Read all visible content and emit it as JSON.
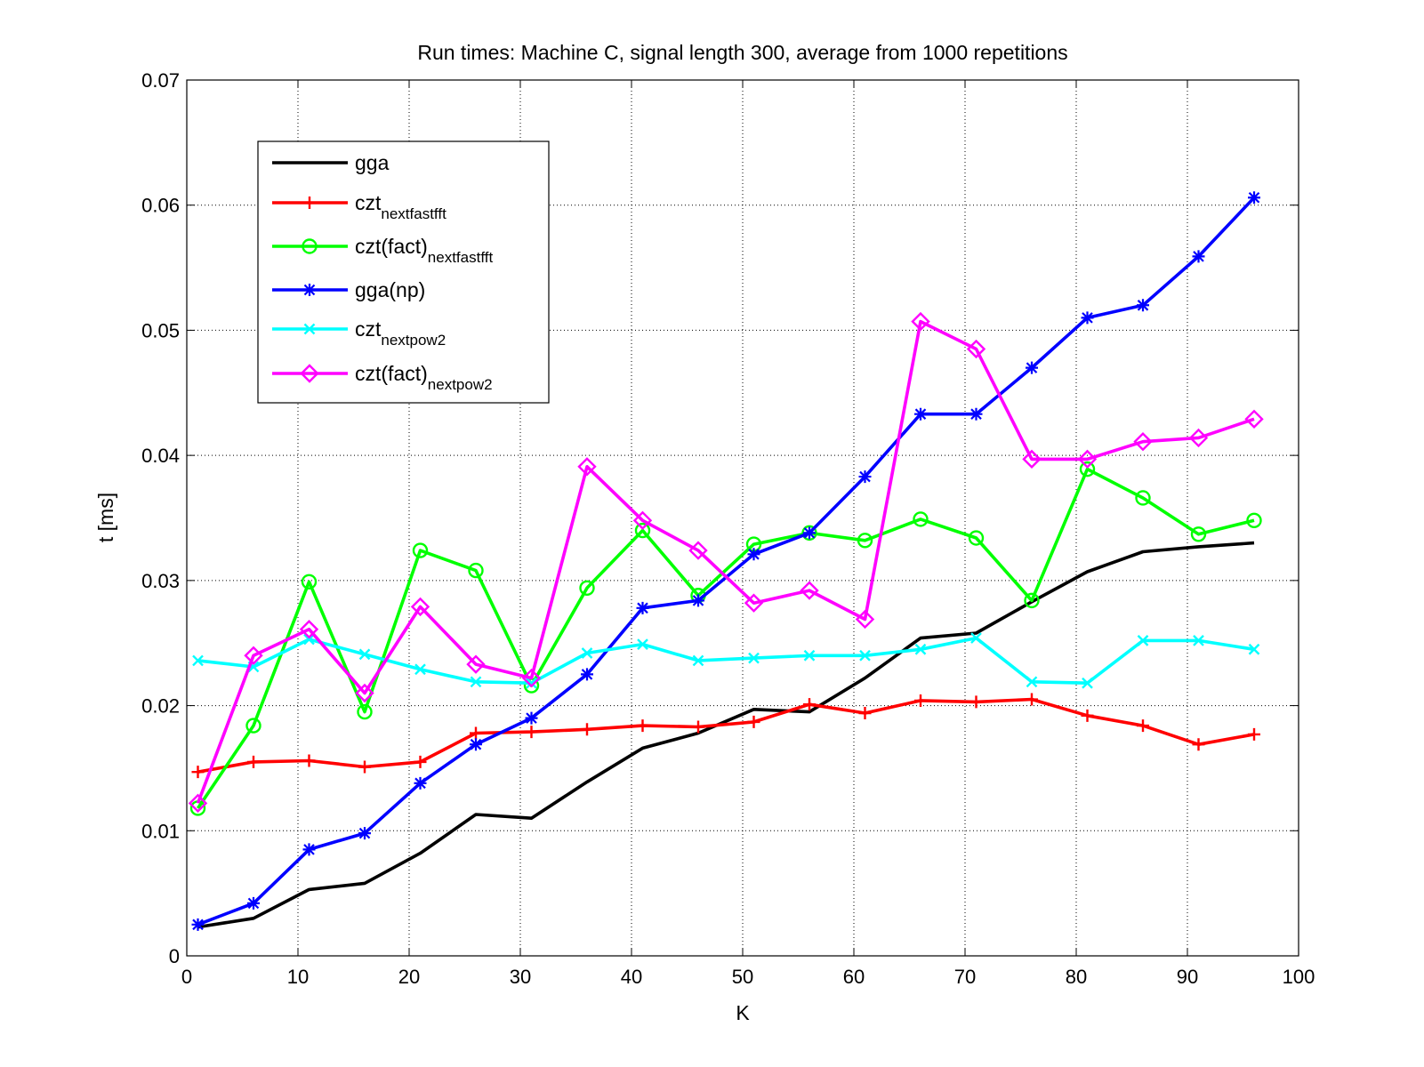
{
  "chart_data": {
    "type": "line",
    "title": "Run times: Machine C, signal length 300, average from 1000 repetitions",
    "xlabel": "K",
    "ylabel": "t [ms]",
    "xlim": [
      0,
      100
    ],
    "ylim": [
      0,
      0.07
    ],
    "xticks": [
      "0",
      "10",
      "20",
      "30",
      "40",
      "50",
      "60",
      "70",
      "80",
      "90",
      "100"
    ],
    "yticks": [
      "0",
      "0.01",
      "0.02",
      "0.03",
      "0.04",
      "0.05",
      "0.06",
      "0.07"
    ],
    "grid": true,
    "legend_position": "top-left",
    "x": [
      1,
      6,
      11,
      16,
      21,
      26,
      31,
      36,
      41,
      46,
      51,
      56,
      61,
      66,
      71,
      76,
      81,
      86,
      91,
      96
    ],
    "series": [
      {
        "name": "gga",
        "name_main": "gga",
        "name_sub": "",
        "color": "#000000",
        "marker": "none",
        "values": [
          0.0023,
          0.003,
          0.0053,
          0.0058,
          0.0082,
          0.0113,
          0.011,
          0.0139,
          0.0166,
          0.0178,
          0.0197,
          0.0195,
          0.0222,
          0.0254,
          0.0258,
          0.0283,
          0.0307,
          0.0323,
          0.0327,
          0.033
        ]
      },
      {
        "name": "czt_nextfastfft",
        "name_main": "czt",
        "name_sub": "nextfastfft",
        "color": "#ff0000",
        "marker": "plus",
        "values": [
          0.0147,
          0.0155,
          0.0156,
          0.0151,
          0.0155,
          0.0178,
          0.0179,
          0.0181,
          0.0184,
          0.0183,
          0.0187,
          0.0201,
          0.0194,
          0.0204,
          0.0203,
          0.0205,
          0.0192,
          0.0184,
          0.0169,
          0.0177
        ]
      },
      {
        "name": "czt(fact)_nextfastfft",
        "name_main": "czt(fact)",
        "name_sub": "nextfastfft",
        "color": "#00ff00",
        "marker": "circle",
        "values": [
          0.0118,
          0.0184,
          0.0299,
          0.0195,
          0.0324,
          0.0308,
          0.0216,
          0.0294,
          0.034,
          0.0288,
          0.0329,
          0.0338,
          0.0332,
          0.0349,
          0.0334,
          0.0284,
          0.0389,
          0.0366,
          0.0337,
          0.0348
        ]
      },
      {
        "name": "gga(np)",
        "name_main": "gga(np)",
        "name_sub": "",
        "color": "#0000ff",
        "marker": "star",
        "values": [
          0.0025,
          0.0042,
          0.0085,
          0.0098,
          0.0138,
          0.0169,
          0.019,
          0.0225,
          0.0278,
          0.0284,
          0.0321,
          0.0338,
          0.0383,
          0.0433,
          0.0433,
          0.047,
          0.051,
          0.052,
          0.0559,
          0.0606
        ]
      },
      {
        "name": "czt_nextpow2",
        "name_main": "czt",
        "name_sub": "nextpow2",
        "color": "#00ffff",
        "marker": "x",
        "values": [
          0.0236,
          0.0231,
          0.0253,
          0.0241,
          0.0229,
          0.0219,
          0.0218,
          0.0242,
          0.0249,
          0.0236,
          0.0238,
          0.024,
          0.024,
          0.0245,
          0.0254,
          0.0219,
          0.0218,
          0.0252,
          0.0252,
          0.0245
        ]
      },
      {
        "name": "czt(fact)_nextpow2",
        "name_main": "czt(fact)",
        "name_sub": "nextpow2",
        "color": "#ff00ff",
        "marker": "diamond",
        "values": [
          0.0122,
          0.024,
          0.0261,
          0.021,
          0.0279,
          0.0233,
          0.0222,
          0.0391,
          0.0348,
          0.0324,
          0.0282,
          0.0292,
          0.0269,
          0.0507,
          0.0485,
          0.0397,
          0.0397,
          0.0411,
          0.0414,
          0.0429
        ]
      }
    ]
  }
}
